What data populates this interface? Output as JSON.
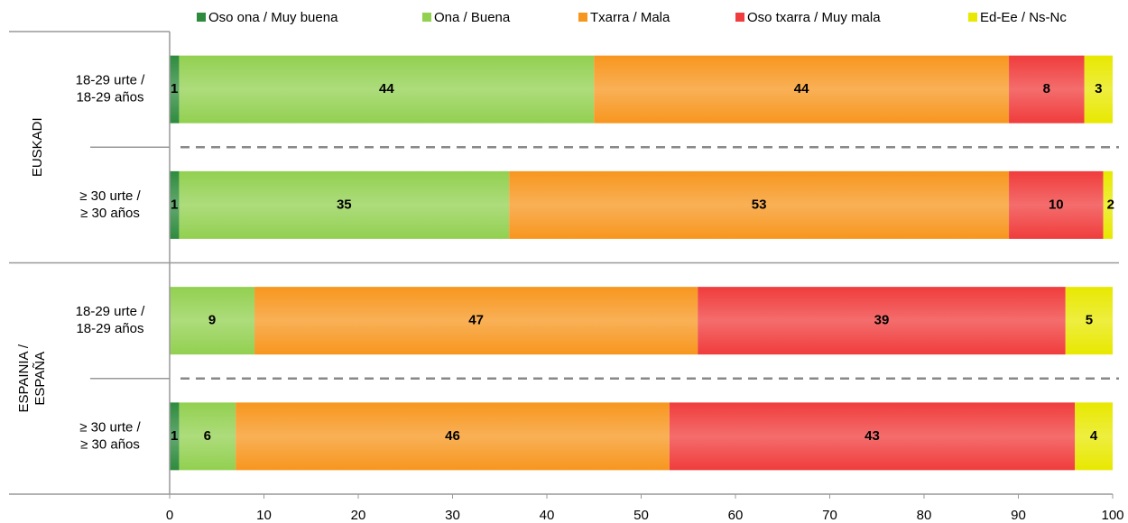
{
  "chart_data": {
    "type": "stacked_barh",
    "groups": [
      {
        "name": [
          "EUSKADI"
        ],
        "categories": [
          [
            "18-29 urte /",
            "18-29 años"
          ],
          [
            "≥ 30 urte /",
            "≥ 30 años"
          ]
        ]
      },
      {
        "name": [
          "ESPAINIA /",
          "ESPAÑA"
        ],
        "categories": [
          [
            "18-29 urte /",
            "18-29 años"
          ],
          [
            "≥ 30 urte /",
            "≥ 30 años"
          ]
        ]
      }
    ],
    "series": [
      {
        "name": "Oso ona / Muy buena",
        "color": "#2e8b3e",
        "values": [
          1,
          1,
          null,
          1
        ]
      },
      {
        "name": "Ona / Buena",
        "color": "#92d050",
        "values": [
          44,
          35,
          9,
          6
        ]
      },
      {
        "name": "Txarra / Mala",
        "color": "#f7961e",
        "values": [
          44,
          53,
          47,
          46
        ]
      },
      {
        "name": "Oso txarra / Muy mala",
        "color": "#f03c3c",
        "values": [
          8,
          10,
          39,
          43
        ]
      },
      {
        "name": "Ed-Ee / Ns-Nc",
        "color": "#e8e800",
        "values": [
          3,
          2,
          5,
          4
        ]
      }
    ],
    "xlim": [
      0,
      100
    ],
    "xticks": [
      0,
      10,
      20,
      30,
      40,
      50,
      60,
      70,
      80,
      90,
      100
    ],
    "legend": "top"
  }
}
